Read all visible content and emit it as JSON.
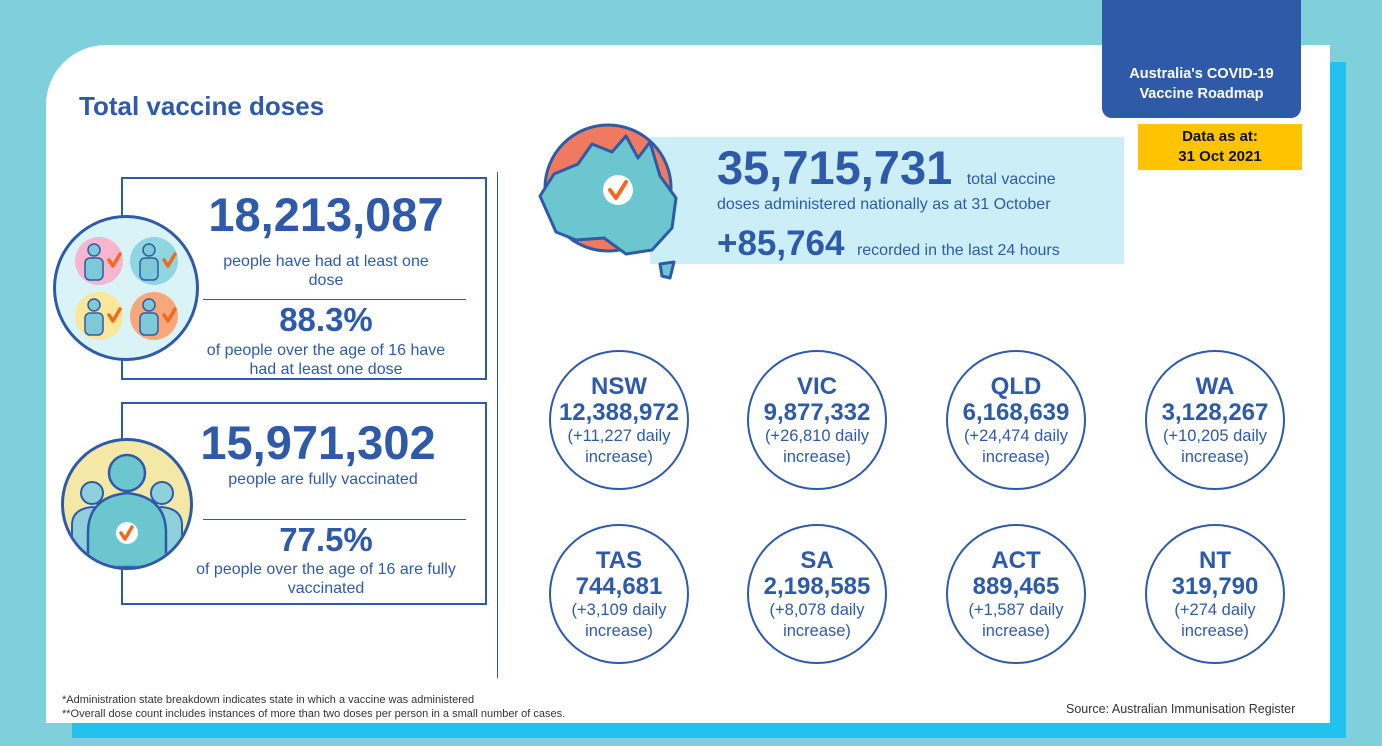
{
  "header": {
    "roadmap_line1": "Australia's COVID-19",
    "roadmap_line2": "Vaccine Roadmap",
    "date_line1": "Data as at:",
    "date_line2": "31 Oct 2021",
    "title": "Total vaccine doses"
  },
  "first_dose": {
    "count": "18,213,087",
    "count_desc": "people have had at least one dose",
    "percent": "88.3%",
    "percent_desc": "of people over the age of 16 have had at least one dose"
  },
  "fully_vaccinated": {
    "count": "15,971,302",
    "count_desc": "people are fully vaccinated",
    "percent": "77.5%",
    "percent_desc": "of people over the age of 16 are fully vaccinated"
  },
  "national": {
    "total": "35,715,731",
    "total_suffix": "total vaccine",
    "total_desc": "doses administered nationally as at 31 October",
    "increase": "+85,764",
    "increase_desc": "recorded in the last 24 hours"
  },
  "states": [
    {
      "name": "NSW",
      "total": "12,388,972",
      "inc_line1": "(+11,227 daily",
      "inc_line2": "increase)"
    },
    {
      "name": "VIC",
      "total": "9,877,332",
      "inc_line1": "(+26,810 daily",
      "inc_line2": "increase)"
    },
    {
      "name": "QLD",
      "total": "6,168,639",
      "inc_line1": "(+24,474 daily",
      "inc_line2": "increase)"
    },
    {
      "name": "WA",
      "total": "3,128,267",
      "inc_line1": "(+10,205 daily",
      "inc_line2": "increase)"
    },
    {
      "name": "TAS",
      "total": "744,681",
      "inc_line1": "(+3,109 daily",
      "inc_line2": "increase)"
    },
    {
      "name": "SA",
      "total": "2,198,585",
      "inc_line1": "(+8,078 daily",
      "inc_line2": "increase)"
    },
    {
      "name": "ACT",
      "total": "889,465",
      "inc_line1": "(+1,587 daily",
      "inc_line2": "increase)"
    },
    {
      "name": "NT",
      "total": "319,790",
      "inc_line1": "(+274 daily",
      "inc_line2": "increase)"
    }
  ],
  "footer": {
    "note1": "*Administration state breakdown indicates state in which a vaccine was administered",
    "note2": "**Overall dose count includes instances of more than two doses per person in a small number of cases.",
    "source": "Source: Australian Immunisation Register"
  },
  "icons": {
    "people_group": "people-checkmark-icon",
    "crowd": "crowd-checkmark-icon",
    "australia_map": "australia-map-icon"
  },
  "colors": {
    "brand_blue": "#2e5aa8",
    "accent_orange": "#f26a21",
    "teal": "#6cc6d0",
    "band": "#cceef6",
    "date_yellow": "#ffc300",
    "map_red": "#f07a60"
  }
}
